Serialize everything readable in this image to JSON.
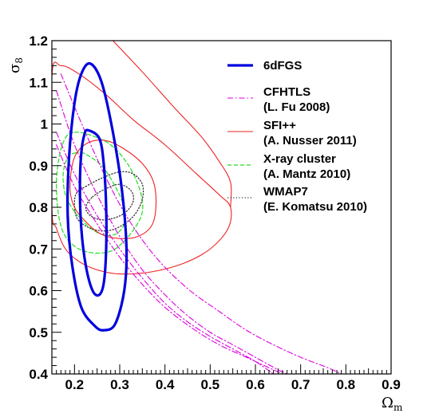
{
  "chart_data": {
    "type": "contour",
    "title": "",
    "xlabel": "Ω_m",
    "ylabel": "σ_8",
    "xlim": [
      0.15,
      0.9
    ],
    "ylim": [
      0.4,
      1.2
    ],
    "x_ticks": [
      "0.2",
      "0.3",
      "0.4",
      "0.5",
      "0.6",
      "0.7",
      "0.8",
      "0.9"
    ],
    "y_ticks": [
      "0.4",
      "0.5",
      "0.6",
      "0.7",
      "0.8",
      "0.9",
      "1",
      "1.1",
      "1.2"
    ],
    "legend_position": "right",
    "series": [
      {
        "name": "6dFGS",
        "legend_line2": "",
        "color": "#0000dd",
        "style": "solid-thick",
        "contours": [
          [
            [
              0.23,
              0.985
            ],
            [
              0.255,
              0.965
            ],
            [
              0.265,
              0.9
            ],
            [
              0.27,
              0.8
            ],
            [
              0.27,
              0.7
            ],
            [
              0.265,
              0.62
            ],
            [
              0.255,
              0.59
            ],
            [
              0.24,
              0.6
            ],
            [
              0.225,
              0.66
            ],
            [
              0.215,
              0.75
            ],
            [
              0.212,
              0.85
            ],
            [
              0.215,
              0.93
            ],
            [
              0.222,
              0.975
            ]
          ],
          [
            [
              0.235,
              1.145
            ],
            [
              0.26,
              1.1
            ],
            [
              0.285,
              0.98
            ],
            [
              0.305,
              0.84
            ],
            [
              0.315,
              0.7
            ],
            [
              0.31,
              0.6
            ],
            [
              0.29,
              0.52
            ],
            [
              0.265,
              0.505
            ],
            [
              0.245,
              0.515
            ],
            [
              0.215,
              0.56
            ],
            [
              0.195,
              0.66
            ],
            [
              0.185,
              0.78
            ],
            [
              0.188,
              0.92
            ],
            [
              0.2,
              1.05
            ],
            [
              0.215,
              1.12
            ]
          ]
        ]
      },
      {
        "name": "CFHTLS",
        "legend_line2": "(L. Fu 2008)",
        "color": "#dd00dd",
        "style": "dash-dot",
        "contours": [
          [
            [
              0.16,
              1.08
            ],
            [
              0.2,
              0.95
            ],
            [
              0.25,
              0.83
            ],
            [
              0.3,
              0.73
            ],
            [
              0.35,
              0.65
            ],
            [
              0.4,
              0.59
            ],
            [
              0.45,
              0.54
            ],
            [
              0.5,
              0.5
            ],
            [
              0.55,
              0.47
            ],
            [
              0.6,
              0.44
            ],
            [
              0.65,
              0.41
            ],
            [
              0.67,
              0.4
            ]
          ],
          [
            [
              0.16,
              0.98
            ],
            [
              0.2,
              0.88
            ],
            [
              0.25,
              0.78
            ],
            [
              0.3,
              0.7
            ],
            [
              0.35,
              0.63
            ],
            [
              0.4,
              0.57
            ],
            [
              0.45,
              0.525
            ],
            [
              0.5,
              0.49
            ],
            [
              0.55,
              0.46
            ],
            [
              0.6,
              0.43
            ],
            [
              0.64,
              0.4
            ]
          ],
          [
            [
              0.17,
              1.12
            ],
            [
              0.22,
              0.99
            ],
            [
              0.27,
              0.87
            ],
            [
              0.32,
              0.77
            ],
            [
              0.38,
              0.68
            ],
            [
              0.45,
              0.605
            ],
            [
              0.52,
              0.55
            ],
            [
              0.58,
              0.505
            ],
            [
              0.64,
              0.47
            ],
            [
              0.7,
              0.44
            ],
            [
              0.76,
              0.415
            ],
            [
              0.79,
              0.4
            ]
          ],
          [
            [
              0.16,
              0.95
            ],
            [
              0.2,
              0.85
            ],
            [
              0.25,
              0.76
            ],
            [
              0.3,
              0.68
            ],
            [
              0.35,
              0.615
            ],
            [
              0.4,
              0.56
            ],
            [
              0.46,
              0.51
            ],
            [
              0.52,
              0.47
            ],
            [
              0.58,
              0.44
            ],
            [
              0.63,
              0.415
            ],
            [
              0.66,
              0.4
            ]
          ]
        ]
      },
      {
        "name": "SFI++",
        "legend_line2": "(A. Nusser 2011)",
        "color": "#ee2222",
        "style": "solid",
        "contours": [
          [
            [
              0.19,
              0.85
            ],
            [
              0.2,
              0.92
            ],
            [
              0.23,
              0.955
            ],
            [
              0.27,
              0.96
            ],
            [
              0.31,
              0.94
            ],
            [
              0.35,
              0.905
            ],
            [
              0.375,
              0.86
            ],
            [
              0.38,
              0.8
            ],
            [
              0.37,
              0.755
            ],
            [
              0.34,
              0.73
            ],
            [
              0.3,
              0.725
            ],
            [
              0.26,
              0.735
            ],
            [
              0.23,
              0.76
            ],
            [
              0.2,
              0.8
            ]
          ],
          [
            [
              0.15,
              1.115
            ],
            [
              0.17,
              1.14
            ],
            [
              0.21,
              1.12
            ],
            [
              0.27,
              1.07
            ],
            [
              0.33,
              1.01
            ],
            [
              0.4,
              0.95
            ],
            [
              0.47,
              0.88
            ],
            [
              0.52,
              0.83
            ],
            [
              0.545,
              0.8
            ],
            [
              0.54,
              0.75
            ],
            [
              0.5,
              0.7
            ],
            [
              0.44,
              0.665
            ],
            [
              0.37,
              0.645
            ],
            [
              0.3,
              0.64
            ],
            [
              0.25,
              0.65
            ],
            [
              0.21,
              0.67
            ],
            [
              0.18,
              0.7
            ],
            [
              0.16,
              0.75
            ],
            [
              0.15,
              0.8
            ]
          ],
          [
            [
              0.285,
              1.2
            ],
            [
              0.35,
              1.125
            ],
            [
              0.42,
              1.04
            ],
            [
              0.48,
              0.97
            ],
            [
              0.52,
              0.91
            ],
            [
              0.545,
              0.86
            ],
            [
              0.545,
              0.8
            ]
          ]
        ]
      },
      {
        "name": "X-ray cluster",
        "legend_line2": "(A. Mantz 2010)",
        "color": "#22dd22",
        "style": "dashed",
        "contours": [
          [
            [
              0.2,
              0.93
            ],
            [
              0.22,
              0.93
            ],
            [
              0.26,
              0.9
            ],
            [
              0.29,
              0.85
            ],
            [
              0.31,
              0.8
            ],
            [
              0.31,
              0.76
            ],
            [
              0.29,
              0.735
            ],
            [
              0.26,
              0.735
            ],
            [
              0.23,
              0.755
            ],
            [
              0.2,
              0.79
            ],
            [
              0.18,
              0.83
            ],
            [
              0.175,
              0.88
            ],
            [
              0.185,
              0.92
            ]
          ],
          [
            [
              0.2,
              0.98
            ],
            [
              0.23,
              0.975
            ],
            [
              0.28,
              0.95
            ],
            [
              0.32,
              0.9
            ],
            [
              0.345,
              0.84
            ],
            [
              0.35,
              0.79
            ],
            [
              0.33,
              0.745
            ],
            [
              0.29,
              0.7
            ],
            [
              0.25,
              0.69
            ],
            [
              0.21,
              0.7
            ],
            [
              0.18,
              0.73
            ],
            [
              0.165,
              0.78
            ],
            [
              0.16,
              0.86
            ],
            [
              0.168,
              0.93
            ],
            [
              0.182,
              0.97
            ]
          ]
        ]
      },
      {
        "name": "WMAP7",
        "legend_line2": "(E. Komatsu 2010)",
        "color": "#333333",
        "style": "dotted",
        "contours": [
          [
            [
              0.24,
              0.825
            ],
            [
              0.27,
              0.845
            ],
            [
              0.3,
              0.855
            ],
            [
              0.325,
              0.84
            ],
            [
              0.33,
              0.815
            ],
            [
              0.315,
              0.79
            ],
            [
              0.29,
              0.775
            ],
            [
              0.26,
              0.77
            ],
            [
              0.235,
              0.78
            ],
            [
              0.225,
              0.8
            ]
          ],
          [
            [
              0.225,
              0.85
            ],
            [
              0.26,
              0.87
            ],
            [
              0.3,
              0.885
            ],
            [
              0.33,
              0.88
            ],
            [
              0.35,
              0.855
            ],
            [
              0.35,
              0.82
            ],
            [
              0.335,
              0.785
            ],
            [
              0.31,
              0.76
            ],
            [
              0.28,
              0.745
            ],
            [
              0.25,
              0.745
            ],
            [
              0.225,
              0.755
            ],
            [
              0.205,
              0.775
            ],
            [
              0.2,
              0.81
            ],
            [
              0.205,
              0.835
            ]
          ]
        ]
      }
    ]
  }
}
